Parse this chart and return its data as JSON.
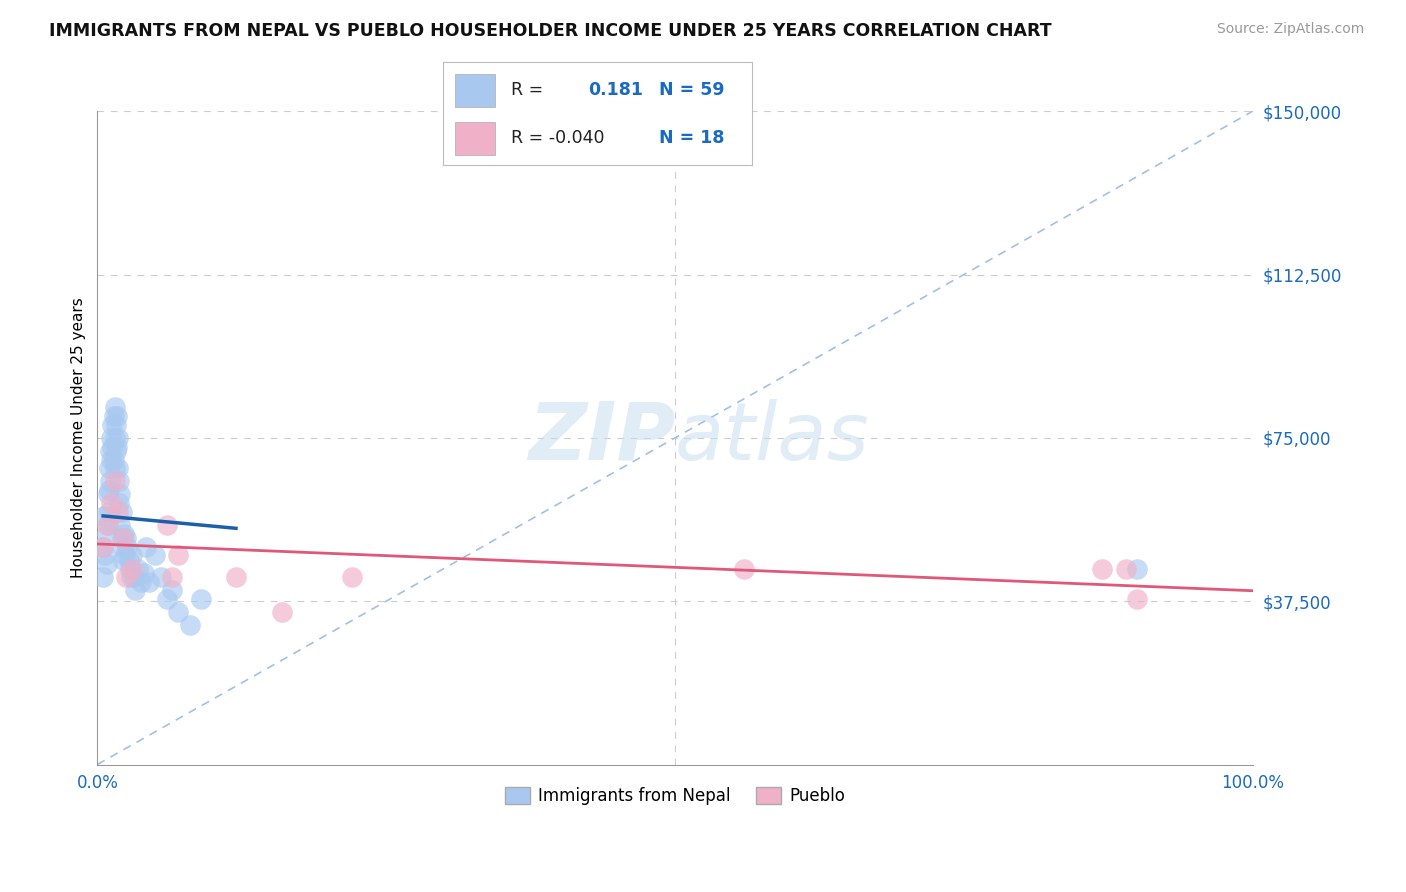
{
  "title": "IMMIGRANTS FROM NEPAL VS PUEBLO HOUSEHOLDER INCOME UNDER 25 YEARS CORRELATION CHART",
  "source": "Source: ZipAtlas.com",
  "ylabel": "Householder Income Under 25 years",
  "xlim": [
    0,
    1.0
  ],
  "ylim": [
    0,
    150000
  ],
  "yticks": [
    0,
    37500,
    75000,
    112500,
    150000
  ],
  "ytick_labels": [
    "",
    "$37,500",
    "$75,000",
    "$112,500",
    "$150,000"
  ],
  "xticks": [
    0,
    0.5,
    1.0
  ],
  "xtick_labels": [
    "0.0%",
    "",
    "100.0%"
  ],
  "watermark_zip": "ZIP",
  "watermark_atlas": "atlas",
  "blue_color": "#a8c8f0",
  "pink_color": "#f0b0c8",
  "blue_line_color": "#1a5faa",
  "pink_line_color": "#e05878",
  "dash_color": "#a0c0e8",
  "nepal_label": "Immigrants from Nepal",
  "pueblo_label": "Pueblo",
  "legend_r1_text": "R =",
  "legend_v1": "0.181",
  "legend_n1": "N = 59",
  "legend_r2_text": "R = -0.040",
  "legend_n2": "N = 18",
  "blue_scatter_x": [
    0.005,
    0.005,
    0.006,
    0.007,
    0.008,
    0.008,
    0.009,
    0.009,
    0.01,
    0.01,
    0.01,
    0.011,
    0.011,
    0.012,
    0.012,
    0.013,
    0.013,
    0.014,
    0.014,
    0.015,
    0.015,
    0.015,
    0.016,
    0.016,
    0.017,
    0.017,
    0.018,
    0.018,
    0.019,
    0.019,
    0.02,
    0.02,
    0.021,
    0.021,
    0.022,
    0.022,
    0.023,
    0.024,
    0.025,
    0.026,
    0.027,
    0.028,
    0.029,
    0.03,
    0.032,
    0.033,
    0.035,
    0.038,
    0.04,
    0.042,
    0.045,
    0.05,
    0.055,
    0.06,
    0.065,
    0.07,
    0.08,
    0.09,
    0.9
  ],
  "blue_scatter_y": [
    50000,
    43000,
    57000,
    48000,
    53000,
    46000,
    62000,
    55000,
    68000,
    63000,
    58000,
    72000,
    65000,
    75000,
    70000,
    78000,
    73000,
    80000,
    70000,
    82000,
    75000,
    68000,
    78000,
    72000,
    80000,
    73000,
    75000,
    68000,
    65000,
    60000,
    62000,
    55000,
    58000,
    52000,
    50000,
    47000,
    53000,
    48000,
    52000,
    50000,
    47000,
    45000,
    43000,
    48000,
    43000,
    40000,
    45000,
    42000,
    44000,
    50000,
    42000,
    48000,
    43000,
    38000,
    40000,
    35000,
    32000,
    38000,
    45000
  ],
  "pink_scatter_x": [
    0.005,
    0.008,
    0.012,
    0.015,
    0.018,
    0.022,
    0.025,
    0.03,
    0.06,
    0.065,
    0.07,
    0.12,
    0.16,
    0.22,
    0.56,
    0.87,
    0.89,
    0.9
  ],
  "pink_scatter_y": [
    50000,
    55000,
    60000,
    65000,
    58000,
    52000,
    43000,
    45000,
    55000,
    43000,
    48000,
    43000,
    35000,
    43000,
    45000,
    45000,
    45000,
    38000
  ],
  "blue_line_x0": 0.005,
  "blue_line_x1": 0.12,
  "pink_line_x0": 0.0,
  "pink_line_x1": 1.0
}
